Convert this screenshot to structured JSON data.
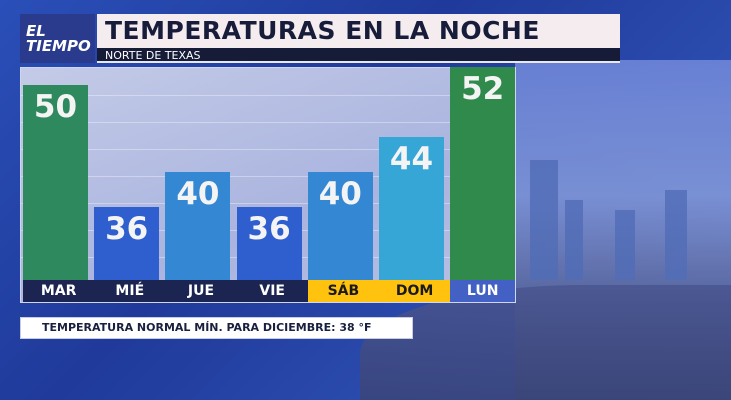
{
  "logo": {
    "line1": "EL",
    "line2": "TIEMPO"
  },
  "header": {
    "title": "TEMPERATURAS EN LA NOCHE",
    "subtitle": "NORTE DE TEXAS"
  },
  "footer": {
    "text": "TEMPERATURA NORMAL MÍN. PARA DICIEMBRE: 38 °F"
  },
  "chart_data": {
    "type": "bar",
    "title": "TEMPERATURAS EN LA NOCHE",
    "categories": [
      "MAR",
      "MIÉ",
      "JUE",
      "VIE",
      "SÁB",
      "DOM",
      "LUN"
    ],
    "values": [
      50,
      36,
      40,
      36,
      40,
      44,
      52
    ],
    "bar_colors": [
      "#2e8a5e",
      "#2f5ecf",
      "#3487d2",
      "#2f5ecf",
      "#3487d2",
      "#36a6d6",
      "#2f8a4c"
    ],
    "label_colors": [
      "#1c2552",
      "#1c2552",
      "#1c2552",
      "#1c2552",
      "#ffc20e",
      "#ffc20e",
      "#4360c4"
    ],
    "label_text_colors": [
      "#ffffff",
      "#ffffff",
      "#ffffff",
      "#ffffff",
      "#1a1a1a",
      "#1a1a1a",
      "#ffffff"
    ],
    "grid": true
  }
}
